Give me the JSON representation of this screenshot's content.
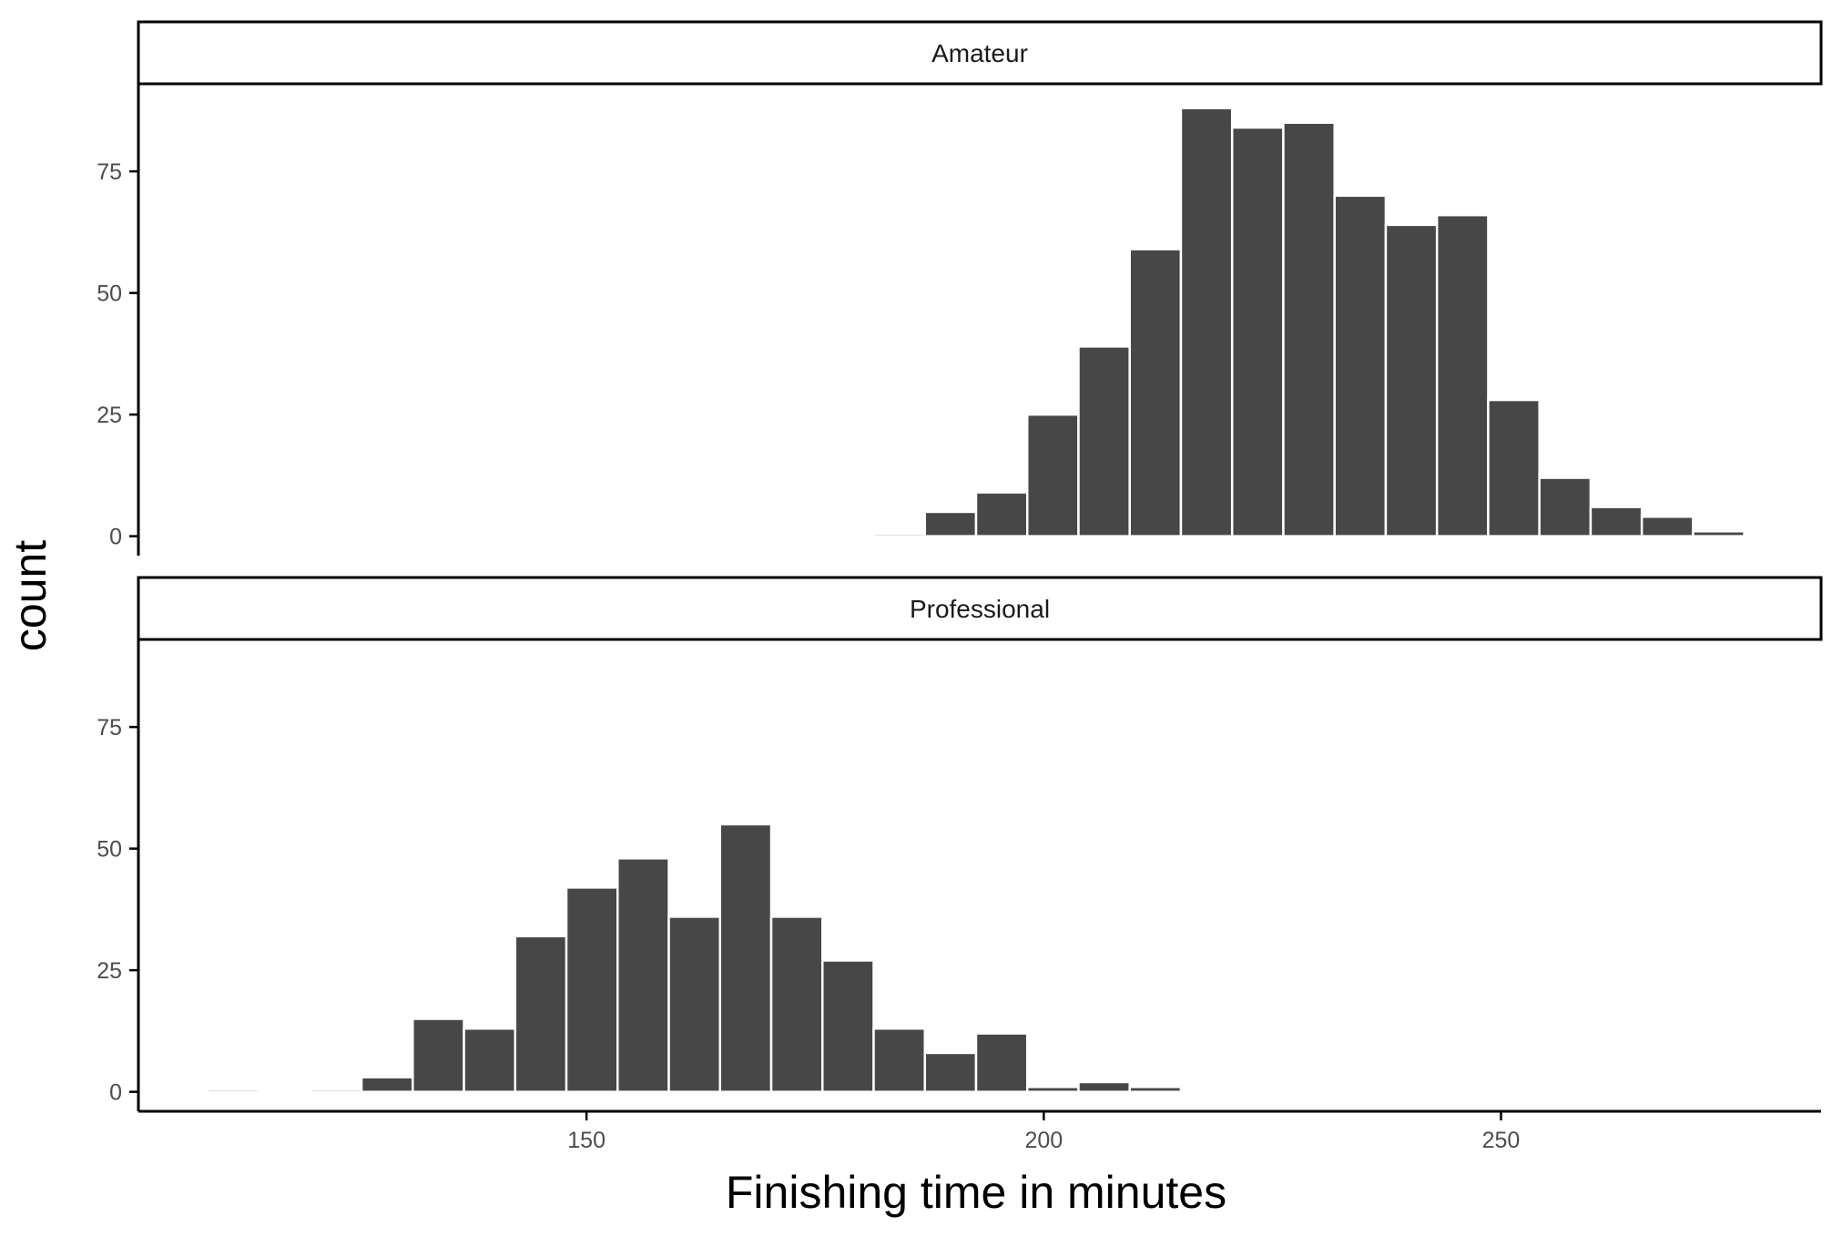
{
  "chart_data": {
    "type": "bar",
    "subtype": "faceted-histogram",
    "xlabel": "Finishing time in minutes",
    "ylabel": "count",
    "x_ticks": [
      150,
      200,
      250
    ],
    "y_ticks": [
      0,
      25,
      50,
      75
    ],
    "xlim": [
      101,
      285
    ],
    "ylim": [
      -4,
      93
    ],
    "bin_width": 5.6,
    "colors": {
      "bar": "#474747",
      "bar_outline": "#ffffff"
    },
    "panels": [
      {
        "name": "Amateur",
        "bins": [
          {
            "x": 184.2,
            "count": 0.5
          },
          {
            "x": 189.8,
            "count": 5
          },
          {
            "x": 195.4,
            "count": 9
          },
          {
            "x": 201.0,
            "count": 25
          },
          {
            "x": 206.6,
            "count": 39
          },
          {
            "x": 212.2,
            "count": 59
          },
          {
            "x": 217.8,
            "count": 88
          },
          {
            "x": 223.4,
            "count": 84
          },
          {
            "x": 229.0,
            "count": 85
          },
          {
            "x": 234.6,
            "count": 70
          },
          {
            "x": 240.2,
            "count": 64
          },
          {
            "x": 245.8,
            "count": 66
          },
          {
            "x": 251.4,
            "count": 28
          },
          {
            "x": 257.0,
            "count": 12
          },
          {
            "x": 262.6,
            "count": 6
          },
          {
            "x": 268.2,
            "count": 4
          },
          {
            "x": 273.8,
            "count": 1
          }
        ]
      },
      {
        "name": "Professional",
        "bins": [
          {
            "x": 111.4,
            "count": 0.5
          },
          {
            "x": 122.6,
            "count": 0.5
          },
          {
            "x": 128.2,
            "count": 3
          },
          {
            "x": 133.8,
            "count": 15
          },
          {
            "x": 139.4,
            "count": 13
          },
          {
            "x": 145.0,
            "count": 32
          },
          {
            "x": 150.6,
            "count": 42
          },
          {
            "x": 156.2,
            "count": 48
          },
          {
            "x": 161.8,
            "count": 36
          },
          {
            "x": 167.4,
            "count": 55
          },
          {
            "x": 173.0,
            "count": 36
          },
          {
            "x": 178.6,
            "count": 27
          },
          {
            "x": 184.2,
            "count": 13
          },
          {
            "x": 189.8,
            "count": 8
          },
          {
            "x": 195.4,
            "count": 12
          },
          {
            "x": 201.0,
            "count": 1
          },
          {
            "x": 206.6,
            "count": 2
          },
          {
            "x": 212.2,
            "count": 1
          }
        ]
      }
    ]
  }
}
